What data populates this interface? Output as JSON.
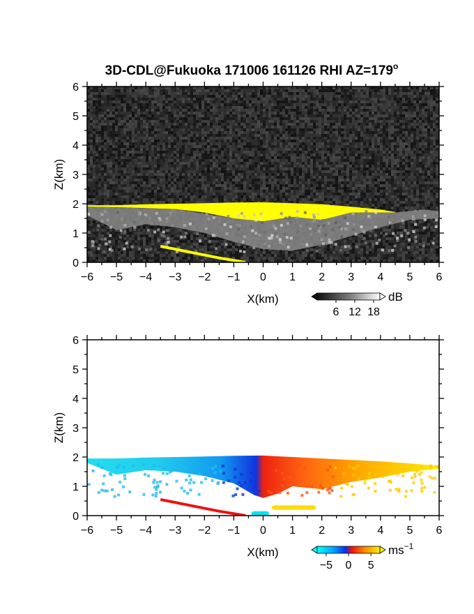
{
  "title": "3D-CDL@Fukuoka 171006 161126 RHI AZ=179",
  "title_superscript": "o",
  "chart_data": [
    {
      "type": "heatmap",
      "name": "reflectivity",
      "xlabel": "X(km)",
      "ylabel": "Z(km)",
      "xlim": [
        -6,
        6
      ],
      "ylim": [
        0,
        6
      ],
      "xticks": [
        "-6",
        "-5",
        "-4",
        "-3",
        "-2",
        "-1",
        "0",
        "1",
        "2",
        "3",
        "4",
        "5",
        "6"
      ],
      "yticks": [
        "0",
        "1",
        "2",
        "3",
        "4",
        "5",
        "6"
      ],
      "background": "noise",
      "colorbar": {
        "unit": "dB",
        "unit_superscript": "",
        "ticks": [
          "6",
          "12",
          "18"
        ],
        "tick_values": [
          6,
          12,
          18
        ],
        "range": [
          0,
          20
        ]
      },
      "features": [
        {
          "kind": "band",
          "color": "#ffff00",
          "top": [
            [
              -6,
              1.95
            ],
            [
              -5,
              1.95
            ],
            [
              -4,
              1.98
            ],
            [
              -3,
              2.0
            ],
            [
              -2,
              2.02
            ],
            [
              -1,
              2.04
            ],
            [
              0,
              2.05
            ],
            [
              1,
              2.02
            ],
            [
              2,
              1.98
            ],
            [
              3,
              1.9
            ],
            [
              4,
              1.8
            ],
            [
              4.5,
              1.72
            ]
          ],
          "bottom": [
            [
              -6,
              1.9
            ],
            [
              -5,
              1.88
            ],
            [
              -4,
              1.85
            ],
            [
              -3,
              1.82
            ],
            [
              -2,
              1.7
            ],
            [
              -1,
              1.5
            ],
            [
              0,
              1.4
            ],
            [
              1,
              1.55
            ],
            [
              2,
              1.45
            ],
            [
              3,
              1.7
            ],
            [
              4,
              1.7
            ],
            [
              4.5,
              1.7
            ]
          ]
        },
        {
          "kind": "gray-cloud",
          "top": [
            [
              -6,
              1.9
            ],
            [
              -3,
              1.82
            ],
            [
              -1,
              1.5
            ],
            [
              0,
              1.4
            ],
            [
              1,
              1.55
            ],
            [
              2,
              1.45
            ],
            [
              3,
              1.7
            ],
            [
              4.5,
              1.7
            ],
            [
              5.5,
              1.8
            ],
            [
              6,
              1.75
            ]
          ],
          "bottom": [
            [
              -6,
              1.6
            ],
            [
              -5,
              1.1
            ],
            [
              -4,
              1.3
            ],
            [
              -3,
              1.2
            ],
            [
              -2,
              1.0
            ],
            [
              -1,
              0.7
            ],
            [
              0,
              0.45
            ],
            [
              1,
              0.4
            ],
            [
              2,
              0.6
            ],
            [
              3,
              0.9
            ],
            [
              4,
              1.2
            ],
            [
              5,
              1.45
            ],
            [
              6,
              1.5
            ]
          ]
        },
        {
          "kind": "line",
          "color": "#ffff00",
          "points": [
            [
              -3.5,
              0.55
            ],
            [
              -2.5,
              0.35
            ],
            [
              -1.5,
              0.15
            ],
            [
              -0.6,
              0.0
            ]
          ]
        }
      ]
    },
    {
      "type": "heatmap",
      "name": "doppler-velocity",
      "xlabel": "X(km)",
      "ylabel": "Z(km)",
      "xlim": [
        -6,
        6
      ],
      "ylim": [
        0,
        6
      ],
      "xticks": [
        "-6",
        "-5",
        "-4",
        "-3",
        "-2",
        "-1",
        "0",
        "1",
        "2",
        "3",
        "4",
        "5",
        "6"
      ],
      "yticks": [
        "0",
        "1",
        "2",
        "3",
        "4",
        "5",
        "6"
      ],
      "background": "#ffffff",
      "colorbar": {
        "unit": "ms",
        "unit_superscript": "−1",
        "ticks": [
          "−5",
          "0",
          "5"
        ],
        "tick_values": [
          -5,
          0,
          5
        ],
        "range": [
          -7,
          7
        ]
      },
      "features": [
        {
          "kind": "region",
          "color_scale": "velocity",
          "top": [
            [
              -6,
              1.95
            ],
            [
              -5,
              1.95
            ],
            [
              -4,
              1.98
            ],
            [
              -3,
              2.0
            ],
            [
              -2,
              2.02
            ],
            [
              -1,
              2.04
            ],
            [
              0,
              2.05
            ],
            [
              1,
              2.0
            ],
            [
              2,
              1.95
            ],
            [
              3,
              1.9
            ],
            [
              4,
              1.85
            ],
            [
              5,
              1.78
            ],
            [
              6,
              1.7
            ]
          ],
          "bottom": [
            [
              -6,
              1.8
            ],
            [
              -5,
              1.4
            ],
            [
              -4,
              1.55
            ],
            [
              -3,
              1.5
            ],
            [
              -2,
              1.35
            ],
            [
              -1,
              1.1
            ],
            [
              -0.3,
              0.7
            ],
            [
              0,
              0.6
            ],
            [
              0.5,
              0.75
            ],
            [
              1,
              1.0
            ],
            [
              2,
              0.9
            ],
            [
              3,
              1.15
            ],
            [
              4,
              1.3
            ],
            [
              5,
              1.5
            ],
            [
              6,
              1.6
            ]
          ]
        },
        {
          "kind": "line",
          "color": "#ee1111",
          "points": [
            [
              -3.5,
              0.55
            ],
            [
              -2.5,
              0.35
            ],
            [
              -1.5,
              0.15
            ],
            [
              -0.6,
              0.0
            ]
          ]
        },
        {
          "kind": "patch",
          "color": "#ffdd00",
          "x": [
            0.3,
            1.8
          ],
          "y": [
            0.2,
            0.35
          ]
        },
        {
          "kind": "patch",
          "color": "#00e5ee",
          "x": [
            -0.4,
            0.2
          ],
          "y": [
            0.0,
            0.15
          ]
        }
      ]
    }
  ]
}
